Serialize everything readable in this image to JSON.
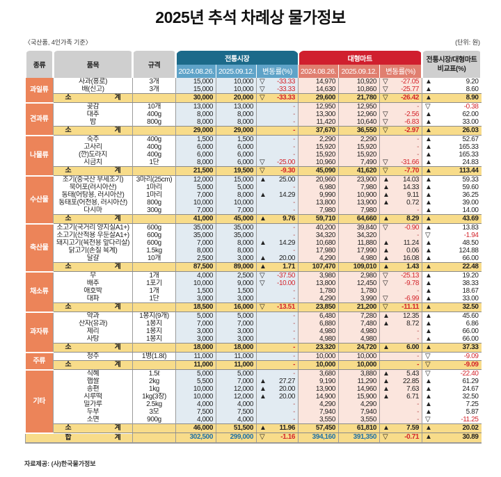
{
  "title": "2025년 추석 차례상 물가정보",
  "basis": "〈국산품, 4인가족 기준〉",
  "unit": "(단위: 원)",
  "source": "자료제공: (사)한국물가정보",
  "colors": {
    "traditional": "#1c6a8a",
    "mart": "#d01f2e",
    "category": "#ec8459",
    "subtotal": "#f8dc8a",
    "negative": "#d4252c"
  },
  "header": {
    "category": "종류",
    "item": "품목",
    "spec": "규격",
    "traditional": "전통시장",
    "mart": "대형마트",
    "date1": "2024.08.26.",
    "date2": "2025.09.12.",
    "change": "변동률(%)",
    "compare1": "전통시장/대형마트",
    "compare2": "비교표(%)"
  },
  "subtotal_label": "소 계",
  "total_label": "합 계",
  "categories": [
    {
      "name": "과일류",
      "items": [
        [
          "사과(홍로)",
          "3개",
          "15,000",
          "10,000",
          "▽",
          "-33.33",
          "14,970",
          "10,920",
          "▽",
          "-27.05",
          "▲",
          "9.20"
        ],
        [
          "배(신고)",
          "3개",
          "15,000",
          "10,000",
          "▽",
          "-33.33",
          "14,630",
          "10,860",
          "▽",
          "-25.77",
          "▲",
          "8.60"
        ]
      ],
      "subtotal": [
        "30,000",
        "20,000",
        "▽",
        "-33.33",
        "29,600",
        "21,780",
        "▽",
        "-26.42",
        "▲",
        "8.90"
      ]
    },
    {
      "name": "견과류",
      "items": [
        [
          "곶감",
          "10개",
          "13,000",
          "13,000",
          "",
          "-",
          "12,950",
          "12,950",
          "",
          "-",
          "▽",
          "-0.38"
        ],
        [
          "대추",
          "400g",
          "8,000",
          "8,000",
          "",
          "-",
          "13,300",
          "12,960",
          "▽",
          "-2.56",
          "▲",
          "62.00"
        ],
        [
          "밤",
          "800g",
          "8,000",
          "8,000",
          "",
          "-",
          "11,420",
          "10,640",
          "▽",
          "-6.83",
          "▲",
          "33.00"
        ]
      ],
      "subtotal": [
        "29,000",
        "29,000",
        "",
        "-",
        "37,670",
        "36,550",
        "▽",
        "-2.97",
        "▲",
        "26.03"
      ]
    },
    {
      "name": "나물류",
      "items": [
        [
          "숙주",
          "400g",
          "1,500",
          "1,500",
          "",
          "-",
          "2,290",
          "2,290",
          "",
          "-",
          "▲",
          "52.67"
        ],
        [
          "고사리",
          "400g",
          "6,000",
          "6,000",
          "",
          "-",
          "15,920",
          "15,920",
          "",
          "-",
          "▲",
          "165.33"
        ],
        [
          "(깐)도라지",
          "400g",
          "6,000",
          "6,000",
          "",
          "-",
          "15,920",
          "15,920",
          "",
          "-",
          "▲",
          "165.33"
        ],
        [
          "시금치",
          "1단",
          "8,000",
          "6,000",
          "▽",
          "-25.00",
          "10,960",
          "7,490",
          "▽",
          "-31.66",
          "▲",
          "24.83"
        ]
      ],
      "subtotal": [
        "21,500",
        "19,500",
        "▽",
        "-9.30",
        "45,090",
        "41,620",
        "▽",
        "-7.70",
        "▲",
        "113.44"
      ]
    },
    {
      "name": "수산물",
      "items": [
        [
          "조기(중국산 부세조기)",
          "3마리(25cm)",
          "12,000",
          "15,000",
          "▲",
          "25.00",
          "20,960",
          "23,900",
          "▲",
          "14.03",
          "▲",
          "59.33"
        ],
        [
          "북어포(러시아산)",
          "1마리",
          "5,000",
          "5,000",
          "",
          "-",
          "6,980",
          "7,980",
          "▲",
          "14.33",
          "▲",
          "59.60"
        ],
        [
          "동태(어탕용, 러시아산)",
          "1마리",
          "7,000",
          "8,000",
          "▲",
          "14.29",
          "9,990",
          "10,900",
          "▲",
          "9.11",
          "▲",
          "36.25"
        ],
        [
          "동태포(어전용, 러시아산)",
          "800g",
          "10,000",
          "10,000",
          "",
          "-",
          "13,800",
          "13,900",
          "▲",
          "0.72",
          "▲",
          "39.00"
        ],
        [
          "다시마",
          "300g",
          "7,000",
          "7,000",
          "",
          "-",
          "7,980",
          "7,980",
          "",
          "-",
          "▲",
          "14.00"
        ]
      ],
      "subtotal": [
        "41,000",
        "45,000",
        "▲",
        "9.76",
        "59,710",
        "64,660",
        "▲",
        "8.29",
        "▲",
        "43.69"
      ]
    },
    {
      "name": "축산물",
      "items": [
        [
          "소고기(국거리 양지실A1+)",
          "600g",
          "35,000",
          "35,000",
          "",
          "-",
          "40,200",
          "39,840",
          "▽",
          "-0.90",
          "▲",
          "13.83"
        ],
        [
          "소고기(산적용 우둔살A1+)",
          "600g",
          "35,000",
          "35,000",
          "",
          "-",
          "34,320",
          "34,320",
          "",
          "-",
          "▽",
          "-1.94"
        ],
        [
          "돼지고기(육전용 앞다리살)",
          "600g",
          "7,000",
          "8,000",
          "▲",
          "14.29",
          "10,680",
          "11,880",
          "▲",
          "11.24",
          "▲",
          "48.50"
        ],
        [
          "닭고기(손질 육계)",
          "1.5kg",
          "8,000",
          "8,000",
          "",
          "-",
          "17,980",
          "17,990",
          "▲",
          "0.06",
          "▲",
          "124.88"
        ],
        [
          "달걀",
          "10개",
          "2,500",
          "3,000",
          "▲",
          "20.00",
          "4,290",
          "4,980",
          "▲",
          "16.08",
          "▲",
          "66.00"
        ]
      ],
      "subtotal": [
        "87,500",
        "89,000",
        "▲",
        "1.71",
        "107,470",
        "109,010",
        "▲",
        "1.43",
        "▲",
        "22.48"
      ]
    },
    {
      "name": "채소류",
      "items": [
        [
          "무",
          "1개",
          "4,000",
          "2,500",
          "▽",
          "-37.50",
          "3,980",
          "2,980",
          "▽",
          "-25.13",
          "▲",
          "19.20"
        ],
        [
          "배추",
          "1포기",
          "10,000",
          "9,000",
          "▽",
          "-10.00",
          "13,800",
          "12,450",
          "▽",
          "-9.78",
          "▲",
          "38.33"
        ],
        [
          "애호박",
          "1개",
          "1,500",
          "1,500",
          "",
          "-",
          "1,780",
          "1,780",
          "",
          "-",
          "▲",
          "18.67"
        ],
        [
          "대파",
          "1단",
          "3,000",
          "3,000",
          "",
          "-",
          "4,290",
          "3,990",
          "▽",
          "-6.99",
          "▲",
          "33.00"
        ]
      ],
      "subtotal": [
        "18,500",
        "16,000",
        "▽",
        "-13.51",
        "23,850",
        "21,200",
        "▽",
        "-11.11",
        "▲",
        "32.50"
      ]
    },
    {
      "name": "과자류",
      "items": [
        [
          "약과",
          "1봉지(9개)",
          "5,000",
          "5,000",
          "",
          "-",
          "6,480",
          "7,280",
          "▲",
          "12.35",
          "▲",
          "45.60"
        ],
        [
          "산자(유과)",
          "1봉지",
          "7,000",
          "7,000",
          "",
          "-",
          "6,880",
          "7,480",
          "▲",
          "8.72",
          "▲",
          "6.86"
        ],
        [
          "제리",
          "1봉지",
          "3,000",
          "3,000",
          "",
          "-",
          "4,980",
          "4,980",
          "",
          "-",
          "▲",
          "66.00"
        ],
        [
          "사탕",
          "1봉지",
          "3,000",
          "3,000",
          "",
          "-",
          "4,980",
          "4,980",
          "",
          "-",
          "▲",
          "66.00"
        ]
      ],
      "subtotal": [
        "18,000",
        "18,000",
        "",
        "-",
        "23,320",
        "24,720",
        "▲",
        "6.00",
        "▲",
        "37.33"
      ]
    },
    {
      "name": "주류",
      "items": [
        [
          "청주",
          "1병(1.8ℓ)",
          "11,000",
          "11,000",
          "",
          "-",
          "10,000",
          "10,000",
          "",
          "-",
          "▽",
          "-9.09"
        ]
      ],
      "subtotal": [
        "11,000",
        "11,000",
        "",
        "-",
        "10,000",
        "10,000",
        "",
        "-",
        "▽",
        "-9.09"
      ]
    },
    {
      "name": "기타",
      "items": [
        [
          "식혜",
          "1.5ℓ",
          "5,000",
          "5,000",
          "",
          "-",
          "3,680",
          "3,880",
          "▲",
          "5.43",
          "▽",
          "-22.40"
        ],
        [
          "햅쌀",
          "2kg",
          "5,500",
          "7,000",
          "▲",
          "27.27",
          "9,190",
          "11,290",
          "▲",
          "22.85",
          "▲",
          "61.29"
        ],
        [
          "송편",
          "1kg",
          "10,000",
          "12,000",
          "▲",
          "20.00",
          "13,900",
          "14,960",
          "▲",
          "7.63",
          "▲",
          "24.67"
        ],
        [
          "시루떡",
          "1kg(3장)",
          "10,000",
          "12,000",
          "▲",
          "20.00",
          "14,900",
          "15,900",
          "▲",
          "6.71",
          "▲",
          "32.50"
        ],
        [
          "밀가루",
          "2.5kg",
          "4,000",
          "4,000",
          "",
          "-",
          "4,290",
          "4,290",
          "",
          "-",
          "▲",
          "7.25"
        ],
        [
          "두부",
          "3모",
          "7,500",
          "7,500",
          "",
          "-",
          "7,940",
          "7,940",
          "",
          "-",
          "▲",
          "5.87"
        ],
        [
          "소면",
          "900g",
          "4,000",
          "4,000",
          "",
          "-",
          "3,550",
          "3,550",
          "",
          "-",
          "▽",
          "-11.25"
        ]
      ],
      "subtotal": [
        "46,000",
        "51,500",
        "▲",
        "11.96",
        "57,450",
        "61,810",
        "▲",
        "7.59",
        "▲",
        "20.02"
      ]
    }
  ],
  "total": [
    "302,500",
    "299,000",
    "▽",
    "-1.16",
    "394,160",
    "391,350",
    "▽",
    "-0.71",
    "▲",
    "30.89"
  ]
}
